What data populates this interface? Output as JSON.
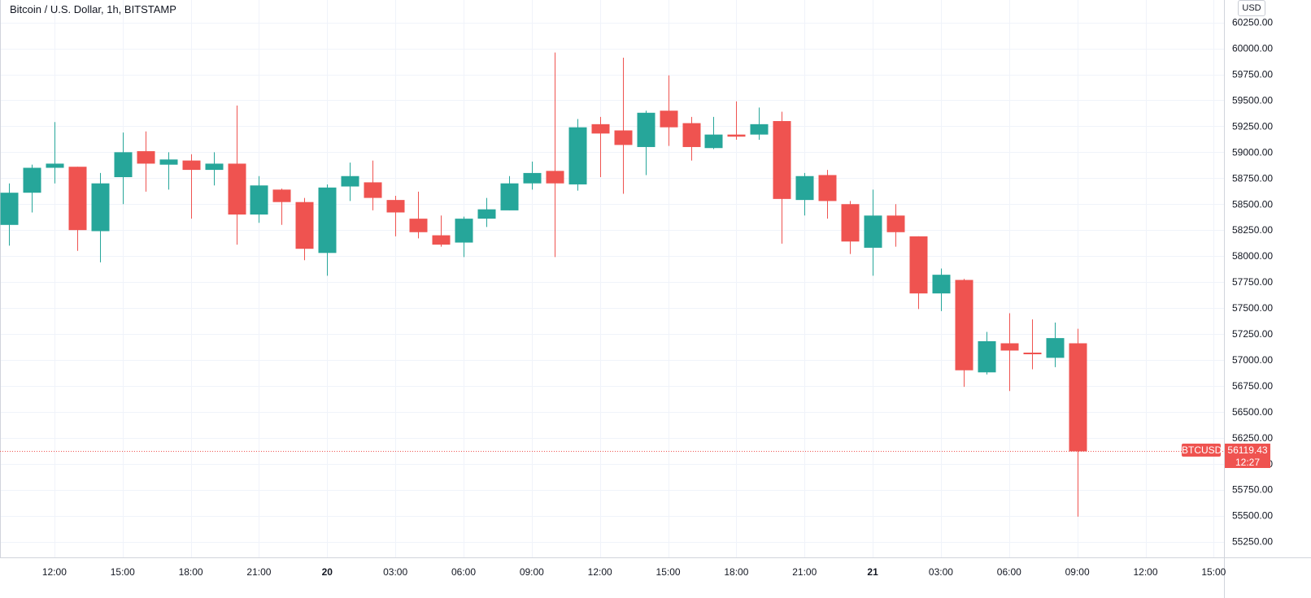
{
  "header": {
    "title": "Bitcoin / U.S. Dollar, 1h, BITSTAMP",
    "currency": "USD"
  },
  "price_tag": {
    "symbol": "BTCUSD",
    "price": "56119.43",
    "countdown": "12:27",
    "color": "#ef5350"
  },
  "colors": {
    "up": "#26a69a",
    "down": "#ef5350",
    "grid": "#f0f3fa"
  },
  "chart_data": {
    "type": "candlestick",
    "title": "Bitcoin / U.S. Dollar, 1h, BITSTAMP",
    "ylim": [
      55100,
      60350
    ],
    "yticks": [
      55250,
      55500,
      55750,
      56000,
      56250,
      56500,
      56750,
      57000,
      57250,
      57500,
      57750,
      58000,
      58250,
      58500,
      58750,
      59000,
      59250,
      59500,
      59750,
      60000,
      60250
    ],
    "xticks": [
      {
        "label": "12:00",
        "index": 2,
        "bold": false
      },
      {
        "label": "15:00",
        "index": 5,
        "bold": false
      },
      {
        "label": "18:00",
        "index": 8,
        "bold": false
      },
      {
        "label": "21:00",
        "index": 11,
        "bold": false
      },
      {
        "label": "20",
        "index": 14,
        "bold": true
      },
      {
        "label": "03:00",
        "index": 17,
        "bold": false
      },
      {
        "label": "06:00",
        "index": 20,
        "bold": false
      },
      {
        "label": "09:00",
        "index": 23,
        "bold": false
      },
      {
        "label": "12:00",
        "index": 26,
        "bold": false
      },
      {
        "label": "15:00",
        "index": 29,
        "bold": false
      },
      {
        "label": "18:00",
        "index": 32,
        "bold": false
      },
      {
        "label": "21:00",
        "index": 35,
        "bold": false
      },
      {
        "label": "21",
        "index": 38,
        "bold": true
      },
      {
        "label": "03:00",
        "index": 41,
        "bold": false
      },
      {
        "label": "06:00",
        "index": 44,
        "bold": false
      },
      {
        "label": "09:00",
        "index": 47,
        "bold": false
      },
      {
        "label": "12:00",
        "index": 50,
        "bold": false
      },
      {
        "label": "15:00",
        "index": 53,
        "bold": false
      }
    ],
    "candles": [
      {
        "o": 58300,
        "h": 58700,
        "l": 58100,
        "c": 58610
      },
      {
        "o": 58610,
        "h": 58880,
        "l": 58420,
        "c": 58850
      },
      {
        "o": 58850,
        "h": 59290,
        "l": 58700,
        "c": 58890
      },
      {
        "o": 58860,
        "h": 58860,
        "l": 58050,
        "c": 58250
      },
      {
        "o": 58240,
        "h": 58800,
        "l": 57940,
        "c": 58700
      },
      {
        "o": 58760,
        "h": 59190,
        "l": 58500,
        "c": 59000
      },
      {
        "o": 59010,
        "h": 59200,
        "l": 58620,
        "c": 58890
      },
      {
        "o": 58880,
        "h": 59000,
        "l": 58640,
        "c": 58930
      },
      {
        "o": 58920,
        "h": 58980,
        "l": 58360,
        "c": 58830
      },
      {
        "o": 58830,
        "h": 59000,
        "l": 58680,
        "c": 58890
      },
      {
        "o": 58890,
        "h": 59450,
        "l": 58110,
        "c": 58400
      },
      {
        "o": 58400,
        "h": 58770,
        "l": 58320,
        "c": 58680
      },
      {
        "o": 58640,
        "h": 58650,
        "l": 58300,
        "c": 58520
      },
      {
        "o": 58520,
        "h": 58560,
        "l": 57960,
        "c": 58070
      },
      {
        "o": 58030,
        "h": 58690,
        "l": 57810,
        "c": 58660
      },
      {
        "o": 58670,
        "h": 58900,
        "l": 58530,
        "c": 58770
      },
      {
        "o": 58710,
        "h": 58920,
        "l": 58440,
        "c": 58560
      },
      {
        "o": 58540,
        "h": 58580,
        "l": 58190,
        "c": 58420
      },
      {
        "o": 58360,
        "h": 58620,
        "l": 58170,
        "c": 58230
      },
      {
        "o": 58200,
        "h": 58390,
        "l": 58090,
        "c": 58110
      },
      {
        "o": 58130,
        "h": 58380,
        "l": 57990,
        "c": 58360
      },
      {
        "o": 58360,
        "h": 58560,
        "l": 58280,
        "c": 58450
      },
      {
        "o": 58440,
        "h": 58770,
        "l": 58440,
        "c": 58700
      },
      {
        "o": 58700,
        "h": 58910,
        "l": 58640,
        "c": 58800
      },
      {
        "o": 58820,
        "h": 59960,
        "l": 57990,
        "c": 58700
      },
      {
        "o": 58690,
        "h": 59320,
        "l": 58630,
        "c": 59240
      },
      {
        "o": 59270,
        "h": 59340,
        "l": 58760,
        "c": 59180
      },
      {
        "o": 59210,
        "h": 59910,
        "l": 58600,
        "c": 59070
      },
      {
        "o": 59050,
        "h": 59400,
        "l": 58780,
        "c": 59380
      },
      {
        "o": 59400,
        "h": 59740,
        "l": 59060,
        "c": 59240
      },
      {
        "o": 59280,
        "h": 59340,
        "l": 58920,
        "c": 59050
      },
      {
        "o": 59040,
        "h": 59340,
        "l": 59030,
        "c": 59170
      },
      {
        "o": 59170,
        "h": 59490,
        "l": 59120,
        "c": 59150
      },
      {
        "o": 59170,
        "h": 59430,
        "l": 59120,
        "c": 59270
      },
      {
        "o": 59300,
        "h": 59390,
        "l": 58120,
        "c": 58550
      },
      {
        "o": 58540,
        "h": 58800,
        "l": 58390,
        "c": 58770
      },
      {
        "o": 58780,
        "h": 58830,
        "l": 58360,
        "c": 58530
      },
      {
        "o": 58500,
        "h": 58530,
        "l": 58020,
        "c": 58140
      },
      {
        "o": 58080,
        "h": 58640,
        "l": 57810,
        "c": 58390
      },
      {
        "o": 58390,
        "h": 58500,
        "l": 58090,
        "c": 58230
      },
      {
        "o": 58190,
        "h": 58190,
        "l": 57490,
        "c": 57640
      },
      {
        "o": 57640,
        "h": 57880,
        "l": 57470,
        "c": 57820
      },
      {
        "o": 57770,
        "h": 57780,
        "l": 56740,
        "c": 56900
      },
      {
        "o": 56880,
        "h": 57270,
        "l": 56860,
        "c": 57180
      },
      {
        "o": 57160,
        "h": 57450,
        "l": 56700,
        "c": 57090
      },
      {
        "o": 57070,
        "h": 57390,
        "l": 56910,
        "c": 57060
      },
      {
        "o": 57020,
        "h": 57360,
        "l": 56930,
        "c": 57210
      },
      {
        "o": 57160,
        "h": 57300,
        "l": 55490,
        "c": 56119.43
      }
    ]
  }
}
